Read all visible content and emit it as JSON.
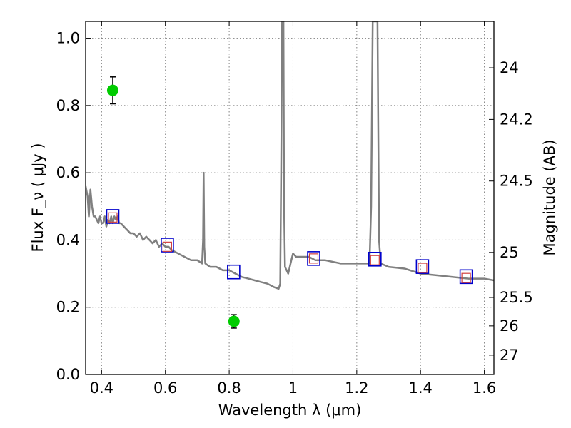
{
  "chart_data": {
    "type": "scatter",
    "xlabel": "Wavelength  λ (μm)",
    "ylabel": "Flux  F_ν  ( μJy )",
    "y2label": "Magnitude (AB)",
    "xlim": [
      0.35,
      1.63
    ],
    "ylim": [
      0.0,
      1.05
    ],
    "grid": true,
    "x_ticks": [
      {
        "value": 0.4,
        "label": "0.4"
      },
      {
        "value": 0.6,
        "label": "0.6"
      },
      {
        "value": 0.8,
        "label": "0.8"
      },
      {
        "value": 1.0,
        "label": "1"
      },
      {
        "value": 1.2,
        "label": "1.2"
      },
      {
        "value": 1.4,
        "label": "1.4"
      },
      {
        "value": 1.6,
        "label": "1.6"
      }
    ],
    "y_ticks": [
      {
        "value": 0.0,
        "label": "0.0"
      },
      {
        "value": 0.2,
        "label": "0.2"
      },
      {
        "value": 0.4,
        "label": "0.4"
      },
      {
        "value": 0.6,
        "label": "0.6"
      },
      {
        "value": 0.8,
        "label": "0.8"
      },
      {
        "value": 1.0,
        "label": "1.0"
      }
    ],
    "y2_ticks": [
      {
        "mag": 24,
        "label": "24"
      },
      {
        "mag": 24.2,
        "label": "24.2"
      },
      {
        "mag": 24.5,
        "label": "24.5"
      },
      {
        "mag": 25,
        "label": "25"
      },
      {
        "mag": 25.5,
        "label": "25.5"
      },
      {
        "mag": 26,
        "label": "26"
      },
      {
        "mag": 27,
        "label": "27"
      }
    ],
    "colors": {
      "model": "#808080",
      "observed": "#00cc00",
      "synthetic": "#0000cc",
      "model_phot": "#d04040",
      "grid": "#808080",
      "errorbar": "#000000"
    },
    "model_spectrum": [
      [
        0.35,
        0.56
      ],
      [
        0.356,
        0.53
      ],
      [
        0.36,
        0.47
      ],
      [
        0.362,
        0.5
      ],
      [
        0.365,
        0.55
      ],
      [
        0.37,
        0.5
      ],
      [
        0.375,
        0.47
      ],
      [
        0.38,
        0.47
      ],
      [
        0.385,
        0.46
      ],
      [
        0.39,
        0.45
      ],
      [
        0.395,
        0.47
      ],
      [
        0.4,
        0.45
      ],
      [
        0.405,
        0.45
      ],
      [
        0.41,
        0.47
      ],
      [
        0.415,
        0.44
      ],
      [
        0.42,
        0.46
      ],
      [
        0.425,
        0.45
      ],
      [
        0.43,
        0.47
      ],
      [
        0.435,
        0.45
      ],
      [
        0.44,
        0.47
      ],
      [
        0.445,
        0.46
      ],
      [
        0.45,
        0.47
      ],
      [
        0.455,
        0.45
      ],
      [
        0.46,
        0.45
      ],
      [
        0.47,
        0.44
      ],
      [
        0.48,
        0.43
      ],
      [
        0.49,
        0.42
      ],
      [
        0.5,
        0.42
      ],
      [
        0.51,
        0.41
      ],
      [
        0.52,
        0.42
      ],
      [
        0.53,
        0.4
      ],
      [
        0.54,
        0.41
      ],
      [
        0.55,
        0.4
      ],
      [
        0.56,
        0.39
      ],
      [
        0.57,
        0.4
      ],
      [
        0.58,
        0.38
      ],
      [
        0.59,
        0.39
      ],
      [
        0.6,
        0.38
      ],
      [
        0.61,
        0.38
      ],
      [
        0.62,
        0.37
      ],
      [
        0.64,
        0.36
      ],
      [
        0.66,
        0.35
      ],
      [
        0.68,
        0.34
      ],
      [
        0.7,
        0.34
      ],
      [
        0.715,
        0.33
      ],
      [
        0.718,
        0.4
      ],
      [
        0.72,
        0.6
      ],
      [
        0.722,
        0.38
      ],
      [
        0.725,
        0.33
      ],
      [
        0.74,
        0.32
      ],
      [
        0.76,
        0.32
      ],
      [
        0.78,
        0.31
      ],
      [
        0.8,
        0.31
      ],
      [
        0.82,
        0.3
      ],
      [
        0.84,
        0.29
      ],
      [
        0.86,
        0.285
      ],
      [
        0.88,
        0.28
      ],
      [
        0.9,
        0.275
      ],
      [
        0.92,
        0.27
      ],
      [
        0.94,
        0.26
      ],
      [
        0.955,
        0.255
      ],
      [
        0.96,
        0.27
      ],
      [
        0.963,
        0.6
      ],
      [
        0.966,
        1.05
      ],
      [
        0.97,
        1.05
      ],
      [
        0.972,
        0.5
      ],
      [
        0.975,
        0.32
      ],
      [
        0.985,
        0.3
      ],
      [
        0.995,
        0.34
      ],
      [
        1.0,
        0.36
      ],
      [
        1.01,
        0.35
      ],
      [
        1.02,
        0.35
      ],
      [
        1.03,
        0.35
      ],
      [
        1.05,
        0.35
      ],
      [
        1.07,
        0.34
      ],
      [
        1.1,
        0.34
      ],
      [
        1.15,
        0.33
      ],
      [
        1.2,
        0.33
      ],
      [
        1.24,
        0.33
      ],
      [
        1.245,
        0.5
      ],
      [
        1.25,
        1.05
      ],
      [
        1.265,
        1.05
      ],
      [
        1.27,
        0.4
      ],
      [
        1.275,
        0.33
      ],
      [
        1.3,
        0.32
      ],
      [
        1.35,
        0.315
      ],
      [
        1.4,
        0.3
      ],
      [
        1.45,
        0.295
      ],
      [
        1.5,
        0.29
      ],
      [
        1.55,
        0.285
      ],
      [
        1.6,
        0.285
      ],
      [
        1.63,
        0.28
      ]
    ],
    "observed": [
      {
        "x": 0.435,
        "y": 0.845,
        "err": 0.04
      },
      {
        "x": 0.815,
        "y": 0.158,
        "err": 0.02
      }
    ],
    "synthetic_photometry": [
      {
        "x": 0.435,
        "y": 0.47
      },
      {
        "x": 0.606,
        "y": 0.385
      },
      {
        "x": 0.814,
        "y": 0.305
      },
      {
        "x": 1.065,
        "y": 0.345
      },
      {
        "x": 1.257,
        "y": 0.343
      },
      {
        "x": 1.406,
        "y": 0.321
      },
      {
        "x": 1.543,
        "y": 0.291
      }
    ],
    "model_photometry": [
      {
        "x": 0.435,
        "y": 0.467
      },
      {
        "x": 0.606,
        "y": 0.38
      },
      {
        "x": 1.065,
        "y": 0.345
      },
      {
        "x": 1.257,
        "y": 0.34
      },
      {
        "x": 1.406,
        "y": 0.317
      },
      {
        "x": 1.543,
        "y": 0.287
      }
    ]
  }
}
